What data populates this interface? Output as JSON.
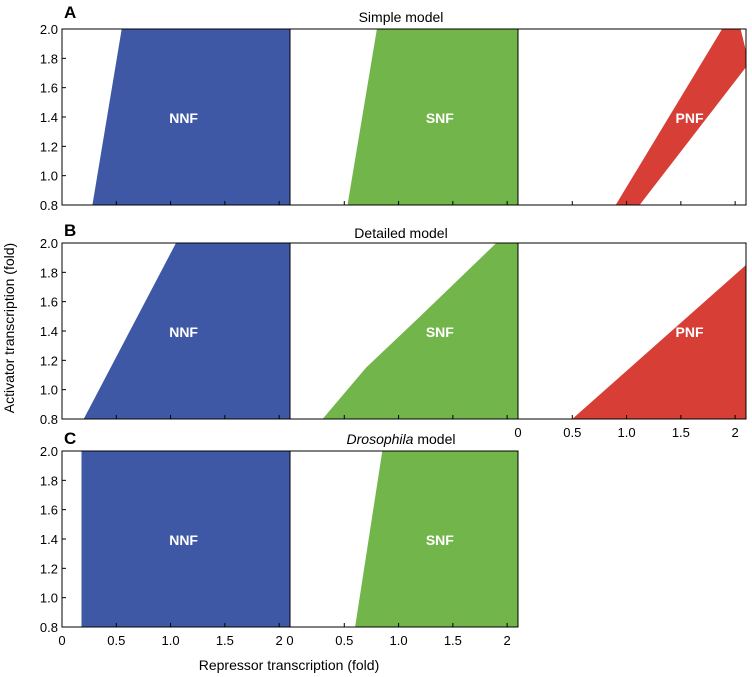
{
  "figure": {
    "panel_letters": [
      "A",
      "B",
      "C"
    ],
    "y_axis_label": "Activator transcription (fold)",
    "x_axis_label": "Repressor transcription (fold)"
  },
  "colors": {
    "NNF": "#3F58A5",
    "SNF": "#72B54A",
    "PNF": "#D63E36"
  },
  "chart_data": [
    {
      "type": "area",
      "row_title": "Simple model",
      "xlim": [
        0,
        2.1
      ],
      "ylim": [
        0.8,
        2.0
      ],
      "x_ticks": [],
      "y_ticks": [
        "0.8",
        "1.0",
        "1.2",
        "1.4",
        "1.6",
        "1.8",
        "2.0"
      ],
      "grid": false,
      "series": [
        {
          "name": "NNF",
          "polygon": [
            [
              0.28,
              0.8
            ],
            [
              0.55,
              2.0
            ],
            [
              2.1,
              2.0
            ],
            [
              2.1,
              0.8
            ]
          ]
        },
        {
          "name": "SNF",
          "polygon": [
            [
              0.53,
              0.8
            ],
            [
              0.8,
              2.0
            ],
            [
              2.1,
              2.0
            ],
            [
              2.1,
              0.8
            ]
          ]
        },
        {
          "name": "PNF",
          "polygon": [
            [
              0.9,
              0.8
            ],
            [
              1.88,
              2.0
            ],
            [
              2.05,
              2.0
            ],
            [
              2.1,
              1.85
            ],
            [
              2.1,
              1.74
            ],
            [
              1.12,
              0.8
            ]
          ]
        }
      ]
    },
    {
      "type": "area",
      "row_title": "Detailed model",
      "xlim": [
        0,
        2.1
      ],
      "ylim": [
        0.8,
        2.0
      ],
      "x_ticks": [],
      "x_ticks_third": [
        "0",
        "0.5",
        "1.0",
        "1.5",
        "2"
      ],
      "y_ticks": [
        "0.8",
        "1.0",
        "1.2",
        "1.4",
        "1.6",
        "1.8",
        "2.0"
      ],
      "grid": false,
      "series": [
        {
          "name": "NNF",
          "polygon": [
            [
              0.2,
              0.8
            ],
            [
              1.05,
              2.0
            ],
            [
              2.1,
              2.0
            ],
            [
              2.1,
              0.8
            ]
          ]
        },
        {
          "name": "SNF",
          "polygon": [
            [
              0.3,
              0.8
            ],
            [
              0.7,
              1.15
            ],
            [
              1.2,
              1.5
            ],
            [
              1.9,
              2.0
            ],
            [
              2.1,
              2.0
            ],
            [
              2.1,
              0.8
            ]
          ]
        },
        {
          "name": "PNF",
          "polygon": [
            [
              0.5,
              0.8
            ],
            [
              2.1,
              1.85
            ],
            [
              2.1,
              0.8
            ]
          ]
        }
      ]
    },
    {
      "type": "area",
      "row_title_prefix": "Drosophila",
      "row_title_suffix": " model",
      "xlim": [
        0,
        2.1
      ],
      "ylim": [
        0.8,
        2.0
      ],
      "x_ticks": [
        "0",
        "0.5",
        "1.0",
        "1.5",
        "2"
      ],
      "y_ticks": [
        "0.8",
        "1.0",
        "1.2",
        "1.4",
        "1.6",
        "1.8",
        "2.0"
      ],
      "grid": false,
      "series": [
        {
          "name": "NNF",
          "polygon": [
            [
              0.18,
              0.8
            ],
            [
              0.18,
              2.0
            ],
            [
              2.1,
              2.0
            ],
            [
              2.1,
              0.8
            ]
          ]
        },
        {
          "name": "SNF",
          "polygon": [
            [
              0.6,
              0.8
            ],
            [
              0.85,
              2.0
            ],
            [
              2.1,
              2.0
            ],
            [
              2.1,
              0.8
            ]
          ]
        }
      ]
    }
  ]
}
